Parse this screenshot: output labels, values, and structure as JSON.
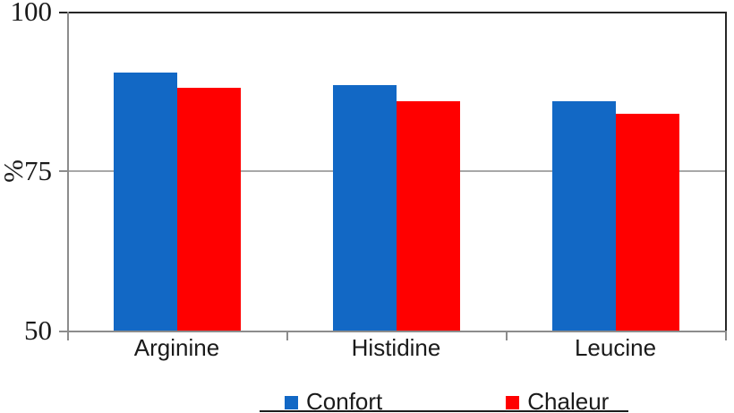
{
  "chart_data": {
    "type": "bar",
    "title": "",
    "categories": [
      "Arginine",
      "Histidine",
      "Leucine"
    ],
    "series": [
      {
        "name": "Confort",
        "color": "#1268C5",
        "values": [
          90.5,
          88.5,
          86
        ]
      },
      {
        "name": "Chaleur",
        "color": "#FF0000",
        "values": [
          88,
          86,
          84
        ]
      }
    ],
    "xlabel": "",
    "ylabel": "%",
    "ylim": [
      50,
      100
    ],
    "yticks": [
      50,
      75,
      100
    ],
    "grid": "horizontal gridline at 75 only",
    "legend_position": "bottom-center",
    "bar_baseline": 50
  },
  "colors": {
    "background": "#FFFFFF",
    "axis_gray": "#8C8C8C",
    "gridline_gray": "#A8A8A8",
    "frame_black": "#262626",
    "text": "#1A1A1A",
    "series_confort_blue": "#1268C5",
    "series_chaleur_red": "#FF0000",
    "bottom_crop_line": "#1C1C1C"
  }
}
